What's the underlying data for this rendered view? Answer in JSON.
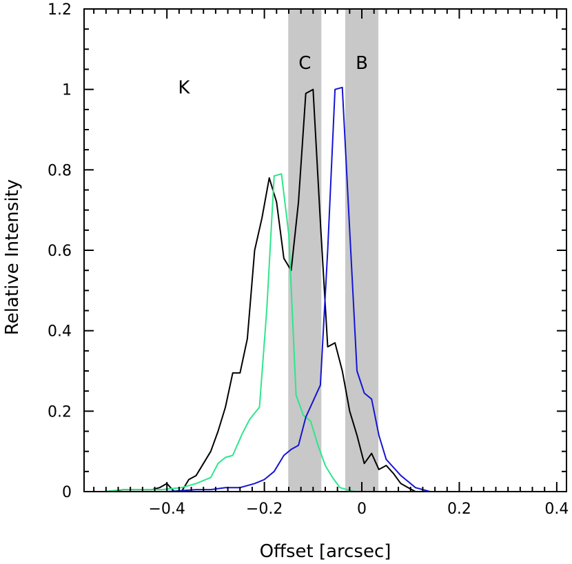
{
  "chart_data": {
    "type": "line",
    "title": "",
    "xlabel": "Offset [arcsec]",
    "ylabel": "Relative Intensity",
    "xlim": [
      -0.57,
      0.42
    ],
    "ylim": [
      0,
      1.2
    ],
    "x_ticks": [
      -0.4,
      -0.2,
      0,
      0.2,
      0.4
    ],
    "x_tick_labels": [
      "−0.4",
      "−0.2",
      "0",
      "0.2",
      "0.4"
    ],
    "y_ticks": [
      0,
      0.2,
      0.4,
      0.6,
      0.8,
      1,
      1.2
    ],
    "y_tick_labels": [
      "0",
      "0.2",
      "0.4",
      "0.6",
      "0.8",
      "1",
      "1.2"
    ],
    "grid": false,
    "bands": [
      {
        "label": "C",
        "x_start": -0.151,
        "x_end": -0.083,
        "color": "#c8c8c8"
      },
      {
        "label": "B",
        "x_start": -0.034,
        "x_end": 0.034,
        "color": "#c8c8c8"
      }
    ],
    "annotations": [
      {
        "text": "K",
        "x": -0.365,
        "y": 0.99
      }
    ],
    "series": [
      {
        "color": "#000000",
        "x": [
          -0.53,
          -0.51,
          -0.49,
          -0.475,
          -0.46,
          -0.445,
          -0.43,
          -0.415,
          -0.4,
          -0.385,
          -0.37,
          -0.355,
          -0.34,
          -0.325,
          -0.31,
          -0.295,
          -0.28,
          -0.265,
          -0.25,
          -0.235,
          -0.22,
          -0.205,
          -0.19,
          -0.175,
          -0.16,
          -0.145,
          -0.13,
          -0.115,
          -0.1,
          -0.085,
          -0.07,
          -0.055,
          -0.04,
          -0.025,
          -0.01,
          0.005,
          0.02,
          0.035,
          0.05,
          0.065,
          0.08,
          0.095,
          0.11,
          0.125,
          0.14,
          0.155,
          0.17,
          0.185,
          0.2,
          0.215,
          0.23,
          0.245,
          0.26,
          0.275,
          0.29,
          0.305,
          0.32,
          0.335
        ],
        "y": [
          0.0,
          0.0,
          0.005,
          0.005,
          0.005,
          0.005,
          0.005,
          0.01,
          0.02,
          0.0,
          0.0,
          0.03,
          0.04,
          0.07,
          0.1,
          0.15,
          0.21,
          0.295,
          0.295,
          0.38,
          0.6,
          0.68,
          0.78,
          0.72,
          0.58,
          0.55,
          0.72,
          0.99,
          1.0,
          0.67,
          0.36,
          0.37,
          0.3,
          0.2,
          0.14,
          0.07,
          0.095,
          0.055,
          0.065,
          0.045,
          0.02,
          0.01,
          0.0,
          0.0,
          0.0,
          0.0,
          0.0,
          0.0,
          0.0,
          0.0,
          0.0,
          0.0,
          0.0,
          0.0,
          0.0,
          0.0,
          0.0,
          0.0
        ]
      },
      {
        "color": "#2ee58a",
        "x": [
          -0.53,
          -0.49,
          -0.45,
          -0.41,
          -0.37,
          -0.34,
          -0.31,
          -0.295,
          -0.28,
          -0.265,
          -0.245,
          -0.23,
          -0.21,
          -0.195,
          -0.18,
          -0.165,
          -0.15,
          -0.135,
          -0.12,
          -0.105,
          -0.09,
          -0.075,
          -0.06,
          -0.045,
          -0.03,
          -0.015,
          0.0,
          0.015,
          0.03,
          0.06,
          0.09,
          0.12,
          0.16,
          0.2,
          0.24,
          0.3
        ],
        "y": [
          0.0,
          0.005,
          0.005,
          0.005,
          0.01,
          0.02,
          0.035,
          0.07,
          0.085,
          0.09,
          0.145,
          0.18,
          0.21,
          0.455,
          0.785,
          0.79,
          0.64,
          0.24,
          0.19,
          0.175,
          0.115,
          0.065,
          0.035,
          0.01,
          0.005,
          0.0,
          0.0,
          0.0,
          0.0,
          0.0,
          0.0,
          0.0,
          0.0,
          0.0,
          0.0,
          0.0
        ],
        "note_removed": null
      },
      {
        "color": "#1414d2",
        "x": [
          -0.5,
          -0.4,
          -0.34,
          -0.31,
          -0.28,
          -0.25,
          -0.22,
          -0.2,
          -0.18,
          -0.16,
          -0.145,
          -0.13,
          -0.115,
          -0.1,
          -0.085,
          -0.07,
          -0.055,
          -0.04,
          -0.025,
          -0.01,
          0.005,
          0.02,
          0.035,
          0.05,
          0.065,
          0.08,
          0.095,
          0.11,
          0.125,
          0.14,
          0.155,
          0.17,
          0.185,
          0.2,
          0.215,
          0.23,
          0.245,
          0.26,
          0.275,
          0.29,
          0.305,
          0.32,
          0.335,
          0.35
        ],
        "y": [
          0.0,
          0.0,
          0.005,
          0.005,
          0.01,
          0.01,
          0.02,
          0.03,
          0.05,
          0.09,
          0.105,
          0.115,
          0.185,
          0.225,
          0.265,
          0.6,
          1.0,
          1.005,
          0.65,
          0.3,
          0.245,
          0.23,
          0.14,
          0.08,
          0.06,
          0.04,
          0.025,
          0.01,
          0.005,
          0.0,
          0.0,
          0.0,
          0.0,
          0.0,
          0.0,
          0.0,
          0.0,
          0.0,
          0.0,
          0.0,
          0.0,
          0.0,
          0.0,
          0.0
        ]
      }
    ]
  }
}
